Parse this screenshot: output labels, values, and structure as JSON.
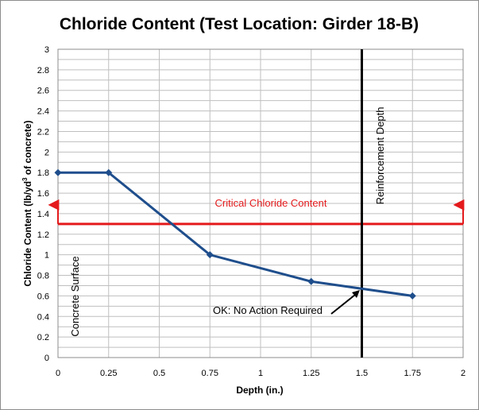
{
  "chart_data": {
    "type": "line",
    "title": "Chloride Content (Test Location: Girder 18-B)",
    "xlabel": "Depth (in.)",
    "ylabel": "Chloride Content (lb/yd3 of concrete)",
    "ylabel_parts": [
      "Chloride Content (lb/yd",
      "3",
      " of concrete)"
    ],
    "xlim": [
      0,
      2
    ],
    "ylim": [
      0,
      3
    ],
    "x_ticks": [
      "0",
      "0.25",
      "0.5",
      "0.75",
      "1",
      "1.25",
      "1.5",
      "1.75",
      "2"
    ],
    "y_ticks": [
      "0",
      "0.2",
      "0.4",
      "0.6",
      "0.8",
      "1",
      "1.2",
      "1.4",
      "1.6",
      "1.8",
      "2",
      "2.2",
      "2.4",
      "2.6",
      "2.8",
      "3"
    ],
    "grid": true,
    "series": [
      {
        "x": [
          0,
          0.25,
          0.75,
          1.25,
          1.75
        ],
        "y": [
          1.8,
          1.8,
          1.0,
          0.74,
          0.6
        ],
        "color": "#1f4e8c"
      }
    ],
    "reference_lines": {
      "critical_chloride": {
        "y": 1.3,
        "label": "Critical Chloride Content",
        "color": "#e41a1c"
      },
      "reinforcement_depth": {
        "x": 1.5,
        "label": "Reinforcement Depth",
        "color": "#000000"
      }
    },
    "annotations": {
      "concrete_surface": "Concrete Surface",
      "ok_note": "OK: No Action Required"
    },
    "colors": {
      "gridline": "#bfbfbf",
      "series": "#1f4e8c",
      "critical": "#e41a1c"
    }
  }
}
